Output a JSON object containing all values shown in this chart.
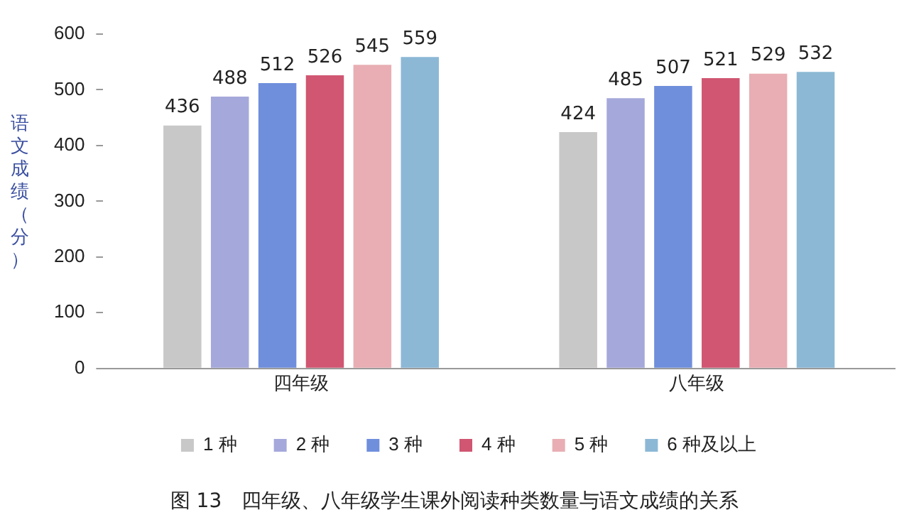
{
  "chart_data": {
    "type": "bar",
    "ylabel": "语文成绩（分）",
    "categories": [
      "四年级",
      "八年级"
    ],
    "series": [
      {
        "name": "1 种",
        "color": "#c8c8c8",
        "values": [
          436,
          424
        ]
      },
      {
        "name": "2 种",
        "color": "#a5a8da",
        "values": [
          488,
          485
        ]
      },
      {
        "name": "3 种",
        "color": "#6f8fdc",
        "values": [
          512,
          507
        ]
      },
      {
        "name": "4 种",
        "color": "#d05671",
        "values": [
          526,
          521
        ]
      },
      {
        "name": "5 种",
        "color": "#e8aeb3",
        "values": [
          545,
          529
        ]
      },
      {
        "name": "6 种及以上",
        "color": "#8cb8d6",
        "values": [
          559,
          532
        ]
      }
    ],
    "ylim": [
      0,
      600
    ],
    "yticks": [
      0,
      100,
      200,
      300,
      400,
      500,
      600
    ],
    "grid": false,
    "legend": "bottom",
    "data_labels": true,
    "annotations": [
      "图 13　四年级、八年级学生课外阅读种类数量与语文成绩的关系"
    ]
  }
}
